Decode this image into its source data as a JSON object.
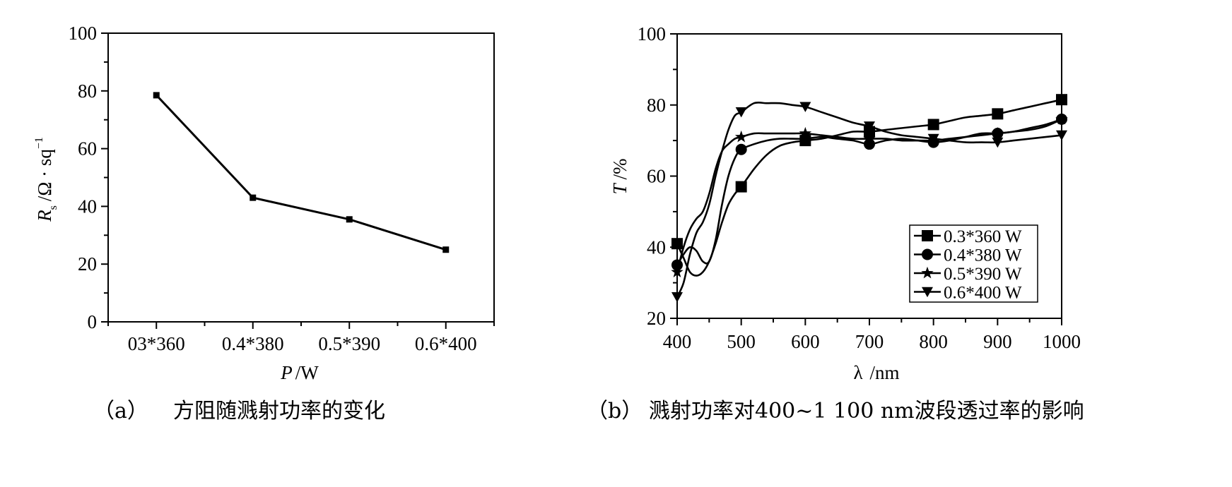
{
  "charts": [
    {
      "panel": "a",
      "caption_tag": "（a）",
      "caption": "方阻随溅射功率的变化",
      "xlabel_var": "P",
      "xlabel_unit": "/W",
      "ylabel_var": "R",
      "ylabel_sub": "s",
      "ylabel_unit": "/Ω · sq",
      "ylabel_sup": "−1"
    },
    {
      "panel": "b",
      "caption_tag": "（b）",
      "caption": "溅射功率对400~1 100 nm波段透过率的影响",
      "xlabel_var": "λ",
      "xlabel_unit": "/nm",
      "ylabel_var": "T",
      "ylabel_unit": "/%"
    }
  ],
  "chart_data": [
    {
      "type": "line",
      "categories": [
        "03*360",
        "0.4*380",
        "0.5*390",
        "0.6*400"
      ],
      "values": [
        78.5,
        43,
        35.5,
        25
      ],
      "ylim": [
        0,
        100
      ],
      "yticks": [
        "0",
        "20",
        "40",
        "60",
        "80",
        "100"
      ],
      "marker": "square",
      "grid": false
    },
    {
      "type": "line",
      "xlim": [
        400,
        1000
      ],
      "ylim": [
        20,
        100
      ],
      "xticks": [
        "400",
        "500",
        "600",
        "700",
        "800",
        "900",
        "1000"
      ],
      "yticks": [
        "20",
        "40",
        "60",
        "80",
        "100"
      ],
      "legend_position": "bottom-right",
      "grid": false,
      "series": [
        {
          "name": "0.3*360 W",
          "marker": "square",
          "x": [
            400,
            410,
            420,
            430,
            440,
            450,
            460,
            470,
            480,
            490,
            500,
            520,
            540,
            560,
            580,
            600,
            625,
            650,
            675,
            700,
            725,
            750,
            775,
            800,
            825,
            850,
            875,
            900,
            925,
            950,
            975,
            1000
          ],
          "y": [
            41,
            37,
            33,
            32,
            33,
            36,
            41,
            47,
            52,
            55,
            57,
            62,
            66,
            68.5,
            69.5,
            70,
            70.5,
            71.5,
            72.5,
            72.5,
            73,
            73.5,
            74,
            74.5,
            75.5,
            76.5,
            77,
            77.5,
            78.5,
            79.5,
            80.5,
            81.5
          ]
        },
        {
          "name": "0.4*380 W",
          "marker": "circle",
          "x": [
            400,
            410,
            420,
            430,
            440,
            450,
            460,
            470,
            480,
            490,
            500,
            520,
            540,
            560,
            580,
            600,
            625,
            650,
            675,
            700,
            725,
            750,
            775,
            800,
            825,
            850,
            875,
            900,
            925,
            950,
            975,
            1000
          ],
          "y": [
            35,
            38,
            40,
            39,
            36,
            36,
            42,
            52,
            60,
            65,
            67.5,
            69,
            70,
            70.5,
            70.5,
            70.5,
            71,
            70.5,
            70,
            69,
            70,
            70.5,
            70,
            69.5,
            70,
            71,
            72,
            72,
            72.5,
            73,
            74,
            76
          ]
        },
        {
          "name": "0.5*390 W",
          "marker": "star",
          "x": [
            400,
            410,
            420,
            430,
            440,
            450,
            460,
            470,
            480,
            490,
            500,
            520,
            540,
            560,
            580,
            600,
            625,
            650,
            675,
            700,
            725,
            750,
            775,
            800,
            825,
            850,
            875,
            900,
            925,
            950,
            975,
            1000
          ],
          "y": [
            33,
            40,
            45,
            48,
            50,
            55,
            62,
            67,
            69,
            70.5,
            71,
            72,
            72,
            72,
            72,
            72,
            71.5,
            71,
            70.5,
            70.5,
            70.5,
            70,
            70,
            70,
            70.5,
            71,
            71.5,
            72,
            72.5,
            73.5,
            74.5,
            76
          ]
        },
        {
          "name": "0.6*400 W",
          "marker": "triangle-down",
          "x": [
            400,
            410,
            420,
            430,
            440,
            450,
            460,
            470,
            480,
            490,
            500,
            520,
            540,
            560,
            580,
            600,
            625,
            650,
            675,
            700,
            725,
            750,
            775,
            800,
            825,
            850,
            875,
            900,
            925,
            950,
            975,
            1000
          ],
          "y": [
            26,
            30,
            38,
            44,
            47,
            52,
            60,
            67,
            73,
            77,
            78,
            80.5,
            80.5,
            80.5,
            80,
            79.5,
            78,
            76.5,
            75,
            74,
            72.5,
            71.5,
            71,
            70.5,
            70,
            69.5,
            69.5,
            69.5,
            70,
            70.5,
            71,
            71.5
          ]
        }
      ]
    }
  ]
}
